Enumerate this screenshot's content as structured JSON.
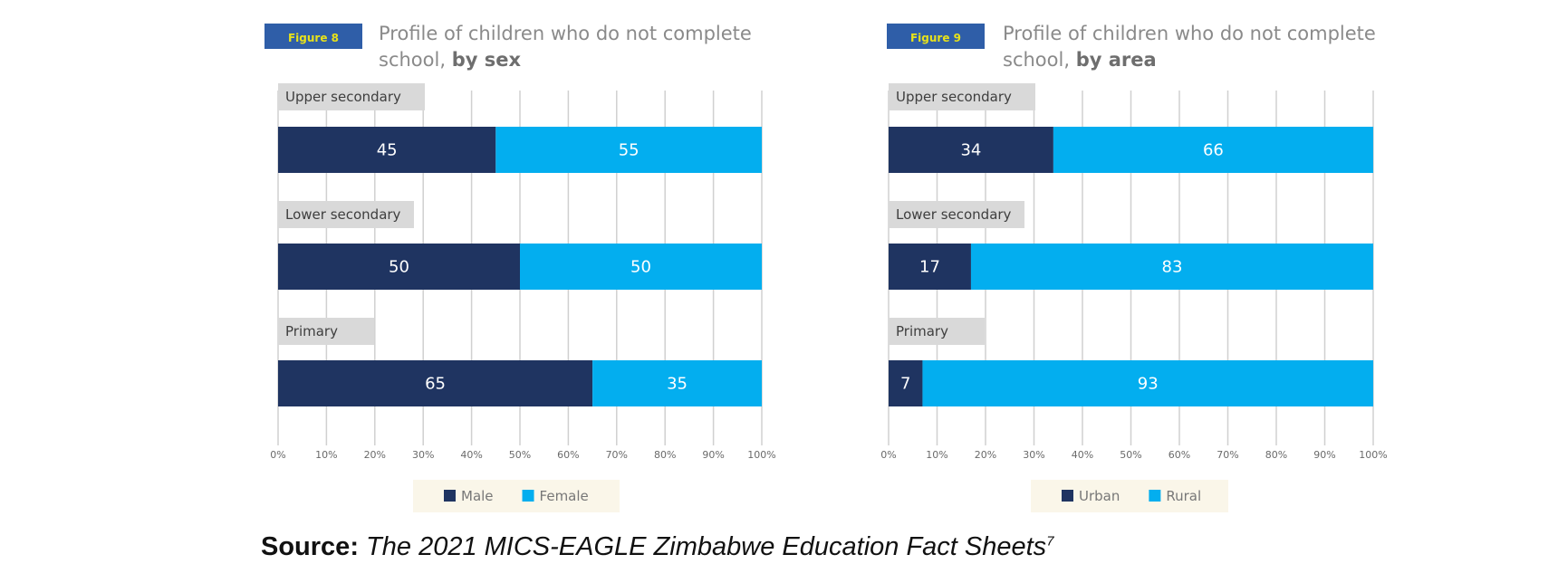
{
  "chart_data": [
    {
      "type": "bar",
      "stacked": true,
      "orientation": "horizontal",
      "figure_label": "Figure 8",
      "title": "Profile of children who do not complete school,",
      "title_bold": "by sex",
      "categories": [
        "Upper secondary",
        "Lower secondary",
        "Primary"
      ],
      "series": [
        {
          "name": "Male",
          "values": [
            45,
            50,
            65
          ],
          "color": "#1f3461"
        },
        {
          "name": "Female",
          "values": [
            55,
            50,
            35
          ],
          "color": "#03aeef"
        }
      ],
      "xlim": [
        0,
        100
      ],
      "x_ticks": [
        "0%",
        "10%",
        "20%",
        "30%",
        "40%",
        "50%",
        "60%",
        "70%",
        "80%",
        "90%",
        "100%"
      ],
      "grid": true,
      "legend": "bottom"
    },
    {
      "type": "bar",
      "stacked": true,
      "orientation": "horizontal",
      "figure_label": "Figure 9",
      "title": "Profile of children who do not complete school,",
      "title_bold": "by area",
      "categories": [
        "Upper secondary",
        "Lower secondary",
        "Primary"
      ],
      "series": [
        {
          "name": "Urban",
          "values": [
            34,
            17,
            7
          ],
          "color": "#1f3461"
        },
        {
          "name": "Rural",
          "values": [
            66,
            83,
            93
          ],
          "color": "#03aeef"
        }
      ],
      "xlim": [
        0,
        100
      ],
      "x_ticks": [
        "0%",
        "10%",
        "20%",
        "30%",
        "40%",
        "50%",
        "60%",
        "70%",
        "80%",
        "90%",
        "100%"
      ],
      "grid": true,
      "legend": "bottom"
    }
  ],
  "colors": {
    "badge_bg": "#2f5ea8",
    "badge_text": "#e8e21a",
    "category_tag_bg": "#d9d9d9",
    "legend_bg": "#faf6e9",
    "grid": "#d0d0d0"
  },
  "source": {
    "label": "Source:",
    "text": "The 2021 MICS-EAGLE Zimbabwe Education Fact Sheets",
    "footnote": "7"
  }
}
